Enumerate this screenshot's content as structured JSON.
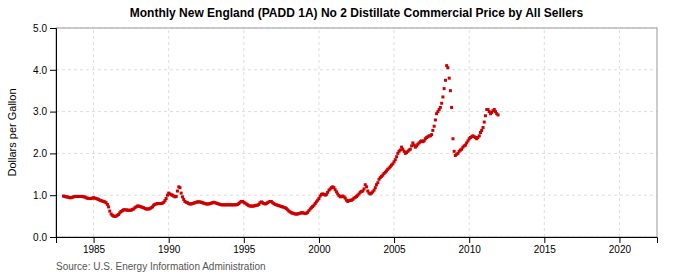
{
  "chart_data": {
    "type": "scatter",
    "title": "Monthly New England (PADD 1A) No 2 Distillate Commercial Price by All Sellers",
    "y_label": "Dollars per Gallon",
    "annotations": [
      "Source: U.S. Energy Information Administration"
    ],
    "color": "#cc0000",
    "marker": "square",
    "grid": true,
    "xlim": [
      1982.5,
      2022.5
    ],
    "ylim": [
      0.0,
      5.0
    ],
    "xticks": [
      1985,
      1990,
      1995,
      2000,
      2005,
      2010,
      2015,
      2020
    ],
    "yticks": [
      {
        "value": 0.0,
        "label": "0.0"
      },
      {
        "value": 1.0,
        "label": "1.0"
      },
      {
        "value": 2.0,
        "label": "2.0"
      },
      {
        "value": 3.0,
        "label": "3.0"
      },
      {
        "value": 4.0,
        "label": "4.0"
      },
      {
        "value": 5.0,
        "label": "5.0"
      }
    ],
    "x": [
      1983.0,
      1983.08,
      1983.17,
      1983.25,
      1983.33,
      1983.42,
      1983.5,
      1983.58,
      1983.67,
      1983.75,
      1983.83,
      1983.92,
      1984.0,
      1984.08,
      1984.17,
      1984.25,
      1984.33,
      1984.42,
      1984.5,
      1984.58,
      1984.67,
      1984.75,
      1984.83,
      1984.92,
      1985.0,
      1985.08,
      1985.17,
      1985.25,
      1985.33,
      1985.42,
      1985.5,
      1985.58,
      1985.67,
      1985.75,
      1985.83,
      1985.92,
      1986.0,
      1986.08,
      1986.17,
      1986.25,
      1986.33,
      1986.42,
      1986.5,
      1986.58,
      1986.67,
      1986.75,
      1986.83,
      1986.92,
      1987.0,
      1987.08,
      1987.17,
      1987.25,
      1987.33,
      1987.42,
      1987.5,
      1987.58,
      1987.67,
      1987.75,
      1987.83,
      1987.92,
      1988.0,
      1988.08,
      1988.17,
      1988.25,
      1988.33,
      1988.42,
      1988.5,
      1988.58,
      1988.67,
      1988.75,
      1988.83,
      1988.92,
      1989.0,
      1989.08,
      1989.17,
      1989.25,
      1989.33,
      1989.42,
      1989.5,
      1989.58,
      1989.67,
      1989.75,
      1989.83,
      1989.92,
      1990.0,
      1990.08,
      1990.17,
      1990.25,
      1990.33,
      1990.42,
      1990.5,
      1990.58,
      1990.67,
      1990.75,
      1990.83,
      1990.92,
      1991.0,
      1991.08,
      1991.17,
      1991.25,
      1991.33,
      1991.42,
      1991.5,
      1991.58,
      1991.67,
      1991.75,
      1991.83,
      1991.92,
      1992.0,
      1992.08,
      1992.17,
      1992.25,
      1992.33,
      1992.42,
      1992.5,
      1992.58,
      1992.67,
      1992.75,
      1992.83,
      1992.92,
      1993.0,
      1993.08,
      1993.17,
      1993.25,
      1993.33,
      1993.42,
      1993.5,
      1993.58,
      1993.67,
      1993.75,
      1993.83,
      1993.92,
      1994.0,
      1994.08,
      1994.17,
      1994.25,
      1994.33,
      1994.42,
      1994.5,
      1994.58,
      1994.67,
      1994.75,
      1994.83,
      1994.92,
      1995.0,
      1995.08,
      1995.17,
      1995.25,
      1995.33,
      1995.42,
      1995.5,
      1995.58,
      1995.67,
      1995.75,
      1995.83,
      1995.92,
      1996.0,
      1996.08,
      1996.17,
      1996.25,
      1996.33,
      1996.42,
      1996.5,
      1996.58,
      1996.67,
      1996.75,
      1996.83,
      1996.92,
      1997.0,
      1997.08,
      1997.17,
      1997.25,
      1997.33,
      1997.42,
      1997.5,
      1997.58,
      1997.67,
      1997.75,
      1997.83,
      1997.92,
      1998.0,
      1998.08,
      1998.17,
      1998.25,
      1998.33,
      1998.42,
      1998.5,
      1998.58,
      1998.67,
      1998.75,
      1998.83,
      1998.92,
      1999.0,
      1999.08,
      1999.17,
      1999.25,
      1999.33,
      1999.42,
      1999.5,
      1999.58,
      1999.67,
      1999.75,
      1999.83,
      1999.92,
      2000.0,
      2000.08,
      2000.17,
      2000.25,
      2000.33,
      2000.42,
      2000.5,
      2000.58,
      2000.67,
      2000.75,
      2000.83,
      2000.92,
      2001.0,
      2001.08,
      2001.17,
      2001.25,
      2001.33,
      2001.42,
      2001.5,
      2001.58,
      2001.67,
      2001.75,
      2001.83,
      2001.92,
      2002.0,
      2002.08,
      2002.17,
      2002.25,
      2002.33,
      2002.42,
      2002.5,
      2002.58,
      2002.67,
      2002.75,
      2002.83,
      2002.92,
      2003.0,
      2003.08,
      2003.17,
      2003.25,
      2003.33,
      2003.42,
      2003.5,
      2003.58,
      2003.67,
      2003.75,
      2003.83,
      2003.92,
      2004.0,
      2004.08,
      2004.17,
      2004.25,
      2004.33,
      2004.42,
      2004.5,
      2004.58,
      2004.67,
      2004.75,
      2004.83,
      2004.92,
      2005.0,
      2005.08,
      2005.17,
      2005.25,
      2005.33,
      2005.42,
      2005.5,
      2005.58,
      2005.67,
      2005.75,
      2005.83,
      2005.92,
      2006.0,
      2006.08,
      2006.17,
      2006.25,
      2006.33,
      2006.42,
      2006.5,
      2006.58,
      2006.67,
      2006.75,
      2006.83,
      2006.92,
      2007.0,
      2007.08,
      2007.17,
      2007.25,
      2007.33,
      2007.42,
      2007.5,
      2007.58,
      2007.67,
      2007.75,
      2007.83,
      2007.92,
      2008.0,
      2008.08,
      2008.17,
      2008.25,
      2008.33,
      2008.42,
      2008.5,
      2008.58,
      2008.67,
      2008.75,
      2008.83,
      2008.92,
      2009.0,
      2009.08,
      2009.17,
      2009.25,
      2009.33,
      2009.42,
      2009.5,
      2009.58,
      2009.67,
      2009.75,
      2009.83,
      2009.92,
      2010.0,
      2010.08,
      2010.17,
      2010.25,
      2010.33,
      2010.42,
      2010.5,
      2010.58,
      2010.67,
      2010.75,
      2010.83,
      2010.92,
      2011.0,
      2011.08,
      2011.17,
      2011.25,
      2011.33,
      2011.42,
      2011.5,
      2011.58,
      2011.67,
      2011.75,
      2011.83,
      2011.92
    ],
    "values": [
      0.98,
      0.97,
      0.96,
      0.96,
      0.95,
      0.94,
      0.94,
      0.95,
      0.96,
      0.97,
      0.97,
      0.97,
      0.97,
      0.97,
      0.97,
      0.97,
      0.96,
      0.96,
      0.94,
      0.93,
      0.92,
      0.92,
      0.92,
      0.93,
      0.94,
      0.93,
      0.92,
      0.91,
      0.9,
      0.88,
      0.87,
      0.86,
      0.85,
      0.84,
      0.82,
      0.78,
      0.72,
      0.62,
      0.55,
      0.52,
      0.5,
      0.49,
      0.5,
      0.52,
      0.54,
      0.58,
      0.61,
      0.63,
      0.65,
      0.65,
      0.65,
      0.64,
      0.64,
      0.64,
      0.64,
      0.66,
      0.67,
      0.7,
      0.72,
      0.74,
      0.74,
      0.73,
      0.72,
      0.71,
      0.7,
      0.68,
      0.67,
      0.67,
      0.67,
      0.68,
      0.7,
      0.72,
      0.76,
      0.78,
      0.79,
      0.8,
      0.8,
      0.8,
      0.8,
      0.81,
      0.83,
      0.87,
      0.92,
      1.0,
      1.05,
      1.03,
      1.01,
      1.0,
      0.98,
      0.96,
      0.97,
      1.1,
      1.2,
      1.18,
      1.05,
      0.96,
      0.9,
      0.85,
      0.83,
      0.82,
      0.8,
      0.79,
      0.79,
      0.8,
      0.81,
      0.82,
      0.83,
      0.84,
      0.84,
      0.84,
      0.83,
      0.82,
      0.81,
      0.8,
      0.79,
      0.79,
      0.79,
      0.8,
      0.81,
      0.82,
      0.83,
      0.82,
      0.81,
      0.8,
      0.79,
      0.78,
      0.77,
      0.77,
      0.77,
      0.77,
      0.77,
      0.77,
      0.77,
      0.77,
      0.77,
      0.77,
      0.77,
      0.77,
      0.77,
      0.78,
      0.8,
      0.83,
      0.85,
      0.85,
      0.83,
      0.81,
      0.79,
      0.77,
      0.75,
      0.74,
      0.74,
      0.74,
      0.74,
      0.75,
      0.76,
      0.76,
      0.78,
      0.82,
      0.84,
      0.82,
      0.8,
      0.79,
      0.8,
      0.82,
      0.84,
      0.85,
      0.85,
      0.82,
      0.8,
      0.78,
      0.77,
      0.76,
      0.75,
      0.74,
      0.73,
      0.72,
      0.71,
      0.7,
      0.68,
      0.65,
      0.62,
      0.6,
      0.58,
      0.57,
      0.56,
      0.55,
      0.55,
      0.55,
      0.56,
      0.57,
      0.58,
      0.58,
      0.57,
      0.56,
      0.57,
      0.59,
      0.63,
      0.67,
      0.7,
      0.73,
      0.76,
      0.8,
      0.84,
      0.88,
      0.92,
      0.98,
      1.02,
      1.03,
      1.02,
      1.0,
      1.02,
      1.07,
      1.12,
      1.15,
      1.18,
      1.2,
      1.18,
      1.13,
      1.08,
      1.03,
      0.99,
      0.96,
      0.97,
      0.98,
      0.96,
      0.93,
      0.88,
      0.85,
      0.87,
      0.88,
      0.88,
      0.9,
      0.93,
      0.95,
      0.97,
      1.0,
      1.03,
      1.07,
      1.09,
      1.1,
      1.15,
      1.25,
      1.2,
      1.1,
      1.05,
      1.03,
      1.05,
      1.08,
      1.12,
      1.18,
      1.25,
      1.3,
      1.38,
      1.42,
      1.45,
      1.48,
      1.52,
      1.55,
      1.58,
      1.62,
      1.65,
      1.68,
      1.72,
      1.75,
      1.8,
      1.85,
      1.92,
      2.0,
      2.05,
      2.08,
      2.15,
      2.1,
      2.05,
      2.0,
      2.02,
      2.05,
      2.08,
      2.1,
      2.18,
      2.25,
      2.2,
      2.15,
      2.18,
      2.22,
      2.25,
      2.28,
      2.3,
      2.28,
      2.3,
      2.35,
      2.38,
      2.4,
      2.42,
      2.42,
      2.45,
      2.55,
      2.65,
      2.8,
      2.95,
      3.0,
      3.05,
      3.1,
      3.2,
      3.35,
      3.55,
      3.75,
      4.1,
      4.05,
      3.8,
      3.5,
      3.1,
      2.35,
      2.05,
      1.95,
      1.98,
      2.0,
      2.05,
      2.08,
      2.1,
      2.15,
      2.18,
      2.2,
      2.25,
      2.3,
      2.35,
      2.38,
      2.4,
      2.42,
      2.4,
      2.38,
      2.35,
      2.38,
      2.42,
      2.5,
      2.55,
      2.62,
      2.75,
      2.9,
      3.05,
      3.05,
      3.0,
      2.95,
      2.98,
      3.02,
      3.05,
      3.0,
      2.95,
      2.92
    ]
  }
}
